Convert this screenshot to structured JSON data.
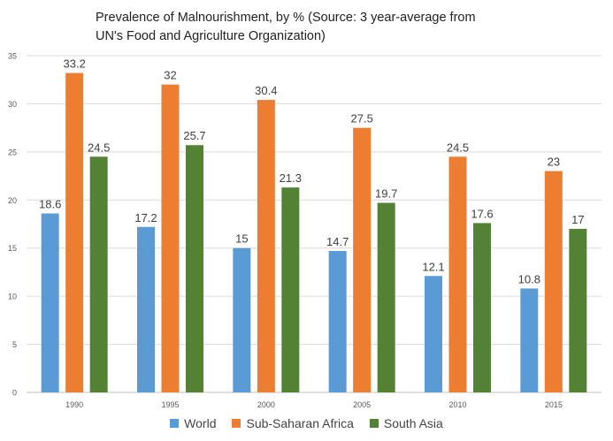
{
  "chart_data": {
    "type": "bar",
    "title": "Prevalence of Malnourishment, by % (Source: 3 year-average from UN's Food and Agriculture Organization)",
    "xlabel": "",
    "ylabel": "",
    "categories": [
      "1990",
      "1995",
      "2000",
      "2005",
      "2010",
      "2015"
    ],
    "series": [
      {
        "name": "World",
        "values": [
          18.6,
          17.2,
          15,
          14.7,
          12.1,
          10.8
        ],
        "color": "#5B9BD5"
      },
      {
        "name": "Sub-Saharan Africa",
        "values": [
          33.2,
          32,
          30.4,
          27.5,
          24.5,
          23
        ],
        "color": "#ED7D31"
      },
      {
        "name": "South Asia",
        "values": [
          24.5,
          25.7,
          21.3,
          19.7,
          17.6,
          17
        ],
        "color": "#548235"
      }
    ],
    "ylim": [
      0,
      35
    ],
    "yticks": [
      0,
      5,
      10,
      15,
      20,
      25,
      30,
      35
    ],
    "grid": true,
    "legend": "bottom"
  }
}
